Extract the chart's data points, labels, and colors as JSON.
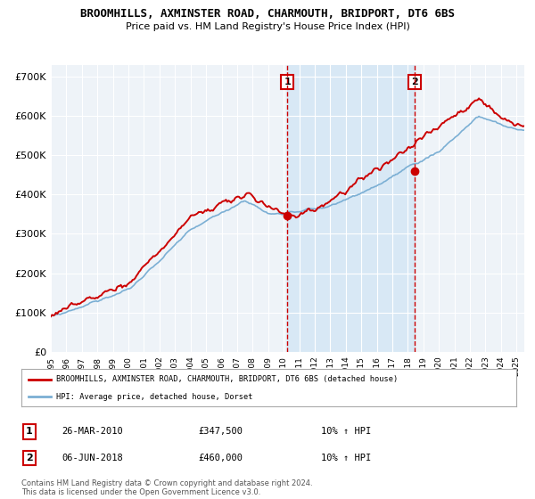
{
  "title": "BROOMHILLS, AXMINSTER ROAD, CHARMOUTH, BRIDPORT, DT6 6BS",
  "subtitle": "Price paid vs. HM Land Registry's House Price Index (HPI)",
  "ylabel_ticks": [
    "£0",
    "£100K",
    "£200K",
    "£300K",
    "£400K",
    "£500K",
    "£600K",
    "£700K"
  ],
  "ytick_values": [
    0,
    100000,
    200000,
    300000,
    400000,
    500000,
    600000,
    700000
  ],
  "ylim": [
    0,
    730000
  ],
  "xlim_start": 1995.0,
  "xlim_end": 2025.5,
  "background_color": "#ffffff",
  "plot_bg_color": "#eef3f8",
  "grid_color": "#ffffff",
  "line1_color": "#cc0000",
  "line2_color": "#7bafd4",
  "vline_color": "#cc0000",
  "shade_color": "#d8e8f5",
  "vline1_x": 2010.23,
  "vline2_x": 2018.44,
  "legend_line1": "BROOMHILLS, AXMINSTER ROAD, CHARMOUTH, BRIDPORT, DT6 6BS (detached house)",
  "legend_line2": "HPI: Average price, detached house, Dorset",
  "annotation1_num": "1",
  "annotation1_date": "26-MAR-2010",
  "annotation1_price": "£347,500",
  "annotation1_hpi": "10% ↑ HPI",
  "annotation2_num": "2",
  "annotation2_date": "06-JUN-2018",
  "annotation2_price": "£460,000",
  "annotation2_hpi": "10% ↑ HPI",
  "footer": "Contains HM Land Registry data © Crown copyright and database right 2024.\nThis data is licensed under the Open Government Licence v3.0.",
  "xtick_years": [
    1995,
    1996,
    1997,
    1998,
    1999,
    2000,
    2001,
    2002,
    2003,
    2004,
    2005,
    2006,
    2007,
    2008,
    2009,
    2010,
    2011,
    2012,
    2013,
    2014,
    2015,
    2016,
    2017,
    2018,
    2019,
    2020,
    2021,
    2022,
    2023,
    2024,
    2025
  ],
  "marker1_x": 2010.23,
  "marker1_y": 347500,
  "marker2_x": 2018.44,
  "marker2_y": 460000
}
